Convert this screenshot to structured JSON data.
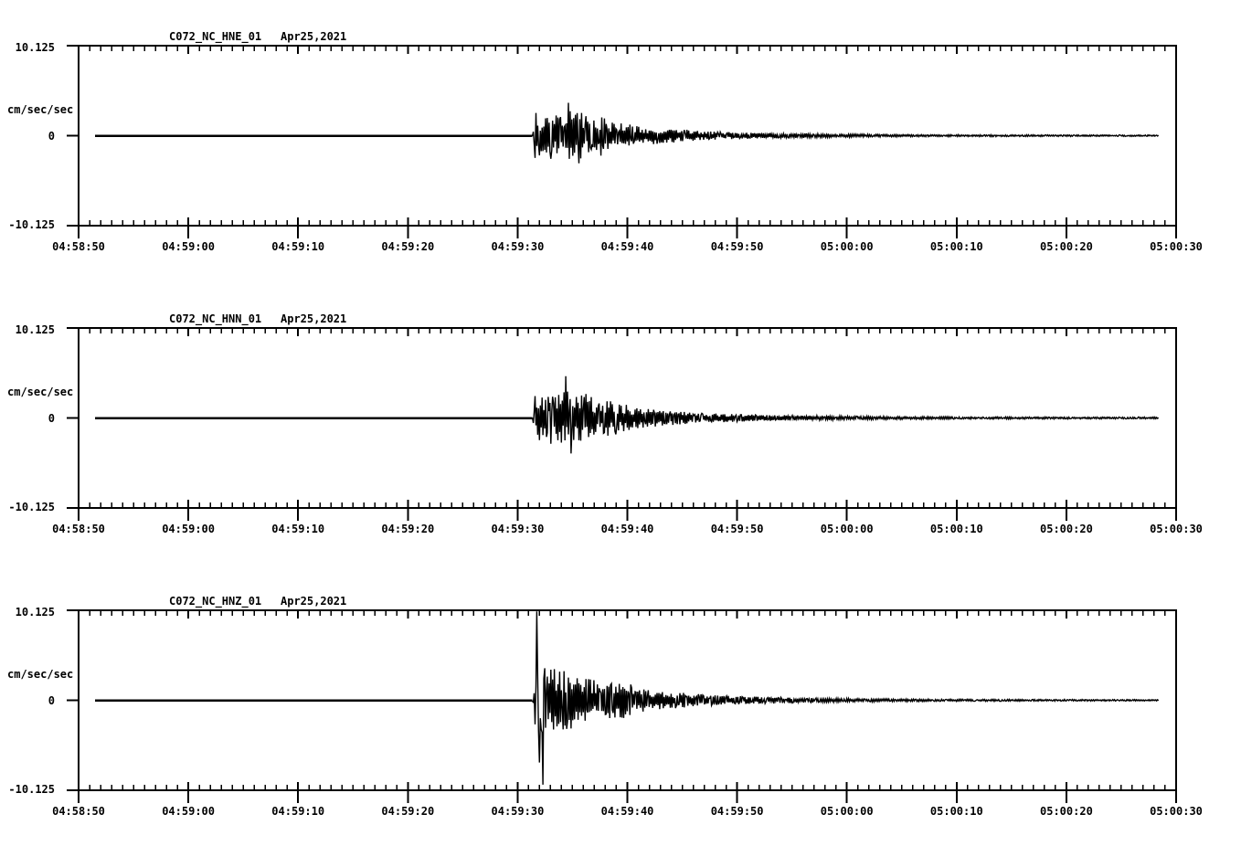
{
  "figure": {
    "background_color": "#ffffff",
    "line_color": "#000000"
  },
  "chart_data": [
    {
      "type": "line",
      "kind": "seismogram",
      "title": "C072_NC_HNE_01",
      "date": "Apr25,2021",
      "ylabel": "cm/sec/sec",
      "y_ticks": [
        "10.125",
        "0",
        "-10.125"
      ],
      "ylim": [
        -10.125,
        10.125
      ],
      "x_tick_labels": [
        "04:58:50",
        "04:59:00",
        "04:59:10",
        "04:59:20",
        "04:59:30",
        "04:59:40",
        "04:59:50",
        "05:00:00",
        "05:00:10",
        "05:00:20",
        "05:00:30"
      ],
      "x_range_s": 100,
      "x_minor_step_s": 1,
      "x_major_step_s": 10,
      "trace_start_s": 1.5,
      "trace_end_s": 98.4,
      "event_onset_s": 41.35,
      "envelope": [
        [
          41.35,
          0.06
        ],
        [
          41.6,
          2.7
        ],
        [
          42.3,
          2.0
        ],
        [
          43.2,
          2.4
        ],
        [
          44.3,
          2.2
        ],
        [
          45.0,
          3.0
        ],
        [
          45.8,
          2.6
        ],
        [
          46.6,
          2.0
        ],
        [
          47.5,
          2.4
        ],
        [
          48.5,
          1.6
        ],
        [
          50,
          1.3
        ],
        [
          52,
          1.0
        ],
        [
          54,
          0.8
        ],
        [
          56,
          0.6
        ],
        [
          58,
          0.45
        ],
        [
          61,
          0.35
        ],
        [
          65,
          0.28
        ],
        [
          70,
          0.18
        ],
        [
          76,
          0.12
        ],
        [
          84,
          0.1
        ],
        [
          98.4,
          0.08
        ]
      ],
      "spikes": [
        [
          43.0,
          -2.6
        ],
        [
          44.6,
          3.7
        ],
        [
          45.6,
          -3.1
        ]
      ]
    },
    {
      "type": "line",
      "kind": "seismogram",
      "title": "C072_NC_HNN_01",
      "date": "Apr25,2021",
      "ylabel": "cm/sec/sec",
      "y_ticks": [
        "10.125",
        "0",
        "-10.125"
      ],
      "ylim": [
        -10.125,
        10.125
      ],
      "x_tick_labels": [
        "04:58:50",
        "04:59:00",
        "04:59:10",
        "04:59:20",
        "04:59:30",
        "04:59:40",
        "04:59:50",
        "05:00:00",
        "05:00:10",
        "05:00:20",
        "05:00:30"
      ],
      "x_range_s": 100,
      "x_minor_step_s": 1,
      "x_major_step_s": 10,
      "trace_start_s": 1.5,
      "trace_end_s": 98.4,
      "event_onset_s": 41.35,
      "envelope": [
        [
          41.35,
          0.06
        ],
        [
          41.6,
          2.9
        ],
        [
          42.6,
          2.4
        ],
        [
          43.6,
          2.6
        ],
        [
          44.4,
          3.1
        ],
        [
          45.3,
          2.5
        ],
        [
          46.2,
          2.8
        ],
        [
          47.2,
          2.0
        ],
        [
          48.2,
          2.3
        ],
        [
          49.5,
          1.6
        ],
        [
          51,
          1.2
        ],
        [
          53,
          0.9
        ],
        [
          55,
          0.7
        ],
        [
          57,
          0.55
        ],
        [
          60,
          0.42
        ],
        [
          64,
          0.32
        ],
        [
          68,
          0.25
        ],
        [
          73,
          0.18
        ],
        [
          80,
          0.13
        ],
        [
          98.4,
          0.1
        ]
      ],
      "spikes": [
        [
          43.0,
          -2.9
        ],
        [
          44.35,
          4.7
        ],
        [
          44.9,
          -4.0
        ]
      ]
    },
    {
      "type": "line",
      "kind": "seismogram",
      "title": "C072_NC_HNZ_01",
      "date": "Apr25,2021",
      "ylabel": "cm/sec/sec",
      "y_ticks": [
        "10.125",
        "0",
        "-10.125"
      ],
      "ylim": [
        -10.125,
        10.125
      ],
      "x_tick_labels": [
        "04:58:50",
        "04:59:00",
        "04:59:10",
        "04:59:20",
        "04:59:30",
        "04:59:40",
        "04:59:50",
        "05:00:00",
        "05:00:10",
        "05:00:20",
        "05:00:30"
      ],
      "x_range_s": 100,
      "x_minor_step_s": 1,
      "x_major_step_s": 10,
      "trace_start_s": 1.5,
      "trace_end_s": 98.4,
      "event_onset_s": 41.35,
      "envelope": [
        [
          41.35,
          0.06
        ],
        [
          41.7,
          4.4
        ],
        [
          42.5,
          4.2
        ],
        [
          43.5,
          3.4
        ],
        [
          44.5,
          3.5
        ],
        [
          45.5,
          2.6
        ],
        [
          46.5,
          2.6
        ],
        [
          48,
          2.0
        ],
        [
          49.5,
          2.2
        ],
        [
          51,
          1.4
        ],
        [
          53,
          1.0
        ],
        [
          55,
          0.85
        ],
        [
          57,
          0.65
        ],
        [
          59,
          0.5
        ],
        [
          62,
          0.4
        ],
        [
          66,
          0.28
        ],
        [
          70,
          0.2
        ],
        [
          75,
          0.15
        ],
        [
          80,
          0.12
        ],
        [
          90,
          0.1
        ],
        [
          98.4,
          0.08
        ]
      ],
      "spikes": [
        [
          41.75,
          10.0
        ],
        [
          41.95,
          -7.0
        ],
        [
          42.3,
          -9.5
        ]
      ]
    }
  ]
}
